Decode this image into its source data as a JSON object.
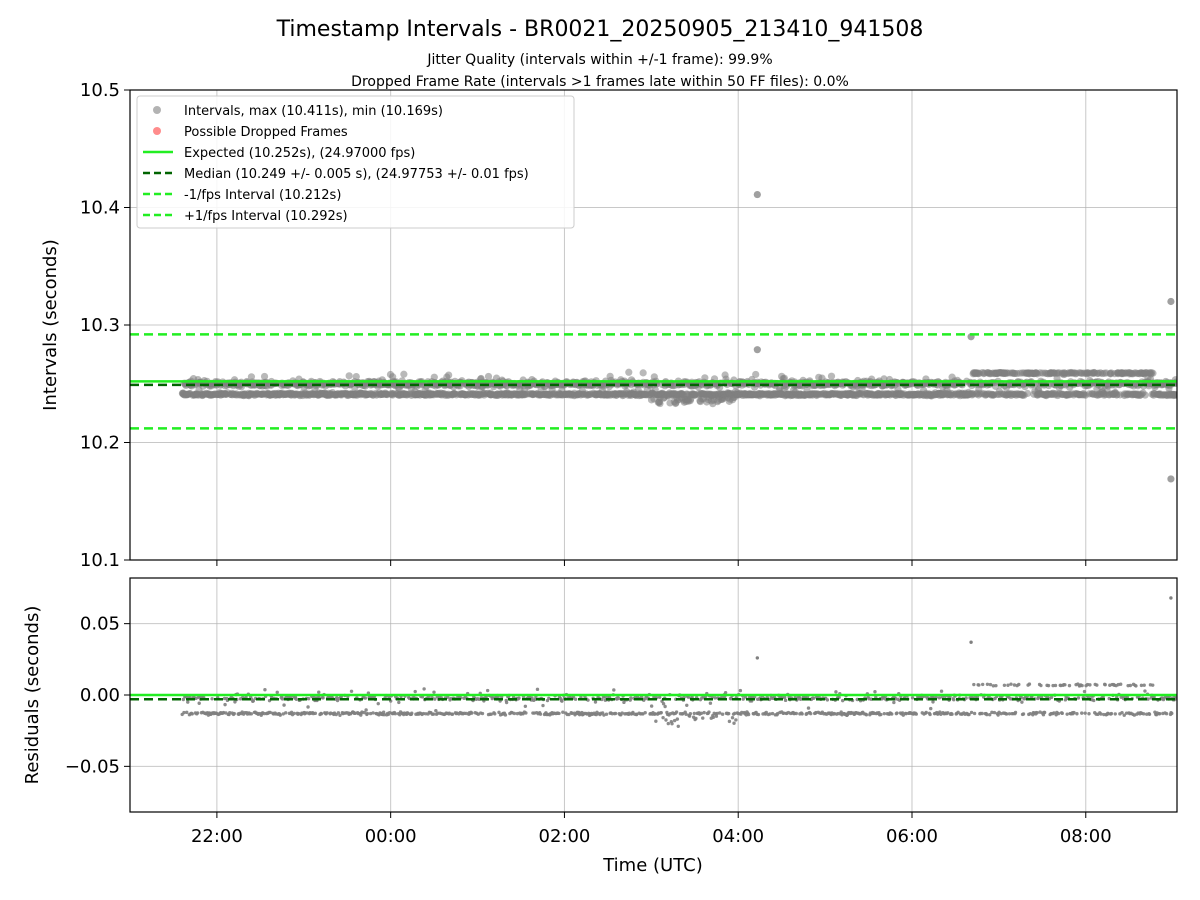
{
  "chart_data": [
    {
      "type": "scatter",
      "title": "Timestamp Intervals - BR0021_20250905_213410_941508",
      "subtitles": [
        "Jitter Quality (intervals within +/-1 frame): 99.9%",
        "Dropped Frame Rate (intervals >1 frames late within 50 FF files): 0.0%"
      ],
      "xlabel": "",
      "ylabel": "Intervals (seconds)",
      "ylim": [
        10.1,
        10.5
      ],
      "xlim_hours": [
        -3.0,
        9.05
      ],
      "yticks": [
        "10.1",
        "10.2",
        "10.3",
        "10.4",
        "10.5"
      ],
      "grid": true,
      "legend_position": "upper-left",
      "legend": [
        {
          "kind": "marker",
          "color": "#808080",
          "label": "Intervals, max (10.411s), min (10.169s)"
        },
        {
          "kind": "marker",
          "color": "#ff4040",
          "label": "Possible Dropped Frames"
        },
        {
          "kind": "solid",
          "color": "#22ee22",
          "label": "Expected (10.252s), (24.97000 fps)"
        },
        {
          "kind": "dashed",
          "color": "#006400",
          "label": "Median (10.249 +/- 0.005 s), (24.97753 +/- 0.01 fps)"
        },
        {
          "kind": "dashed",
          "color": "#22ee22",
          "label": "-1/fps Interval (10.212s)"
        },
        {
          "kind": "dashed",
          "color": "#22ee22",
          "label": "+1/fps Interval (10.292s)"
        }
      ],
      "reference_lines": [
        {
          "name": "Expected",
          "y": 10.252,
          "color": "#22ee22",
          "style": "solid"
        },
        {
          "name": "Median",
          "y": 10.249,
          "color": "#006400",
          "style": "dashed"
        },
        {
          "name": "-1/fps Interval",
          "y": 10.212,
          "color": "#22ee22",
          "style": "dashed"
        },
        {
          "name": "+1/fps Interval",
          "y": 10.292,
          "color": "#22ee22",
          "style": "dashed"
        }
      ],
      "data_start_hour": -2.4,
      "data_end_hour": 9.05,
      "base_levels": [
        10.241,
        10.25
      ],
      "outliers": [
        {
          "hour": 4.22,
          "y": 10.411
        },
        {
          "hour": 4.22,
          "y": 10.279
        },
        {
          "hour": 6.68,
          "y": 10.29
        },
        {
          "hour": 8.98,
          "y": 10.32
        },
        {
          "hour": 8.98,
          "y": 10.169
        }
      ]
    },
    {
      "type": "scatter",
      "xlabel": "Time (UTC)",
      "ylabel": "Residuals (seconds)",
      "ylim": [
        -0.082,
        0.082
      ],
      "xlim_hours": [
        -3.0,
        9.05
      ],
      "yticks": [
        "−0.05",
        "0.00",
        "0.05"
      ],
      "xticks": [
        "22:00",
        "00:00",
        "02:00",
        "04:00",
        "06:00",
        "08:00"
      ],
      "grid": true,
      "reference_lines": [
        {
          "name": "Expected",
          "y": 0.0,
          "color": "#22ee22",
          "style": "solid"
        },
        {
          "name": "Median",
          "y": -0.003,
          "color": "#006400",
          "style": "dashed"
        }
      ],
      "base_levels": [
        -0.013,
        -0.002
      ],
      "outliers": [
        {
          "hour": 4.22,
          "y": 0.026
        },
        {
          "hour": 6.68,
          "y": 0.037
        },
        {
          "hour": 8.98,
          "y": 0.068
        }
      ]
    }
  ],
  "colors": {
    "scatter": "#808080",
    "dropped": "#ff4040",
    "expected": "#22ee22",
    "median": "#006400",
    "grid": "#b0b0b0"
  }
}
